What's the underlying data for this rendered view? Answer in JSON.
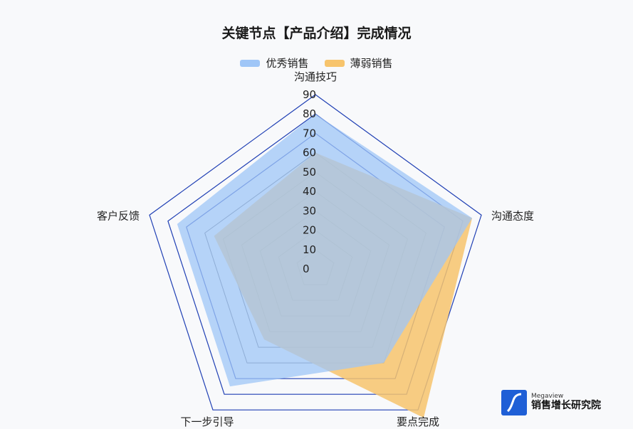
{
  "chart_data": {
    "type": "radar",
    "title": "关键节点【产品介绍】完成情况",
    "indicators": [
      "沟通技巧",
      "沟通态度",
      "要点完成",
      "下一步引导",
      "客户反馈"
    ],
    "ticks": [
      "0",
      "10",
      "20",
      "30",
      "40",
      "50",
      "60",
      "70",
      "80",
      "90"
    ],
    "rmax": 90,
    "legend_position": "top-center",
    "series": [
      {
        "name": "优秀销售",
        "values": [
          80,
          85,
          60,
          75,
          75
        ],
        "color": "#9fc6f7"
      },
      {
        "name": "薄弱销售",
        "values": [
          60,
          85,
          95,
          45,
          55
        ],
        "color": "#f7c46c"
      }
    ],
    "grid_color": "#1f3fb4"
  },
  "brand": {
    "sub": "Megaview",
    "name": "销售增长研究院"
  }
}
